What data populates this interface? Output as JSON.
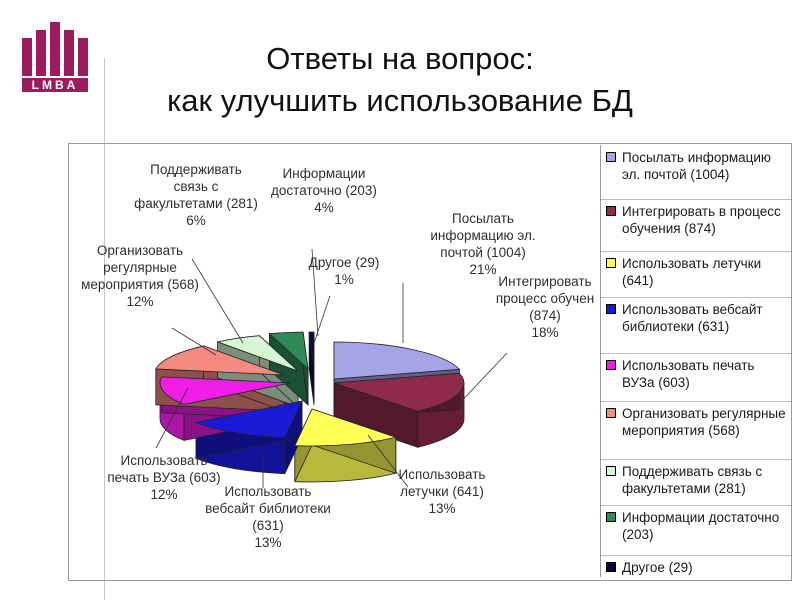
{
  "logo": {
    "text": "LMBA",
    "color": "#9b1d5e"
  },
  "title": {
    "line1": "Ответы на вопрос:",
    "line2": "как улучшить использование БД"
  },
  "chart_data": {
    "type": "pie",
    "three_d": true,
    "legend_position": "right",
    "series": [
      {
        "legend": "Посылать информацию эл. почтой (1004)",
        "label_lines": [
          "Посылать",
          "информацию эл.",
          "почтой (1004)",
          "21%"
        ],
        "value": 1004,
        "percent": 21,
        "color": "#a4a4e6"
      },
      {
        "legend": "Интегрировать в процесс обучения (874)",
        "label_lines": [
          "Интегрировать",
          "процесс обучен",
          "(874)",
          "18%"
        ],
        "value": 874,
        "percent": 18,
        "color": "#8e2a4c"
      },
      {
        "legend": "Использовать летучки (641)",
        "label_lines": [
          "Использовать",
          "летучки (641)",
          "13%"
        ],
        "value": 641,
        "percent": 13,
        "color": "#ffff55"
      },
      {
        "legend": "Использовать вебсайт библиотеки (631)",
        "label_lines": [
          "Использовать",
          "вебсайт библиотеки",
          "(631)",
          "13%"
        ],
        "value": 631,
        "percent": 13,
        "color": "#1a1ad4"
      },
      {
        "legend": "Использовать печать ВУЗа (603)",
        "label_lines": [
          "Использовать",
          "печать ВУЗа (603)",
          "12%"
        ],
        "value": 603,
        "percent": 12,
        "color": "#ee1ee8"
      },
      {
        "legend": "Организовать регулярные мероприятия (568)",
        "label_lines": [
          "Организовать",
          "регулярные",
          "мероприятия (568)",
          "12%"
        ],
        "value": 568,
        "percent": 12,
        "color": "#f58a80"
      },
      {
        "legend": "Поддерживать связь с факультетами (281)",
        "label_lines": [
          "Поддерживать",
          "связь с",
          "факультетами (281)",
          "6%"
        ],
        "value": 281,
        "percent": 6,
        "color": "#d6f5d2"
      },
      {
        "legend": "Информации достаточно (203)",
        "label_lines": [
          "Информации",
          "достаточно (203)",
          "4%"
        ],
        "value": 203,
        "percent": 4,
        "color": "#2f8a5a"
      },
      {
        "legend": "Другое (29)",
        "label_lines": [
          "Другое (29)",
          "1%"
        ],
        "value": 29,
        "percent": 1,
        "color": "#0a0a3a"
      }
    ]
  }
}
